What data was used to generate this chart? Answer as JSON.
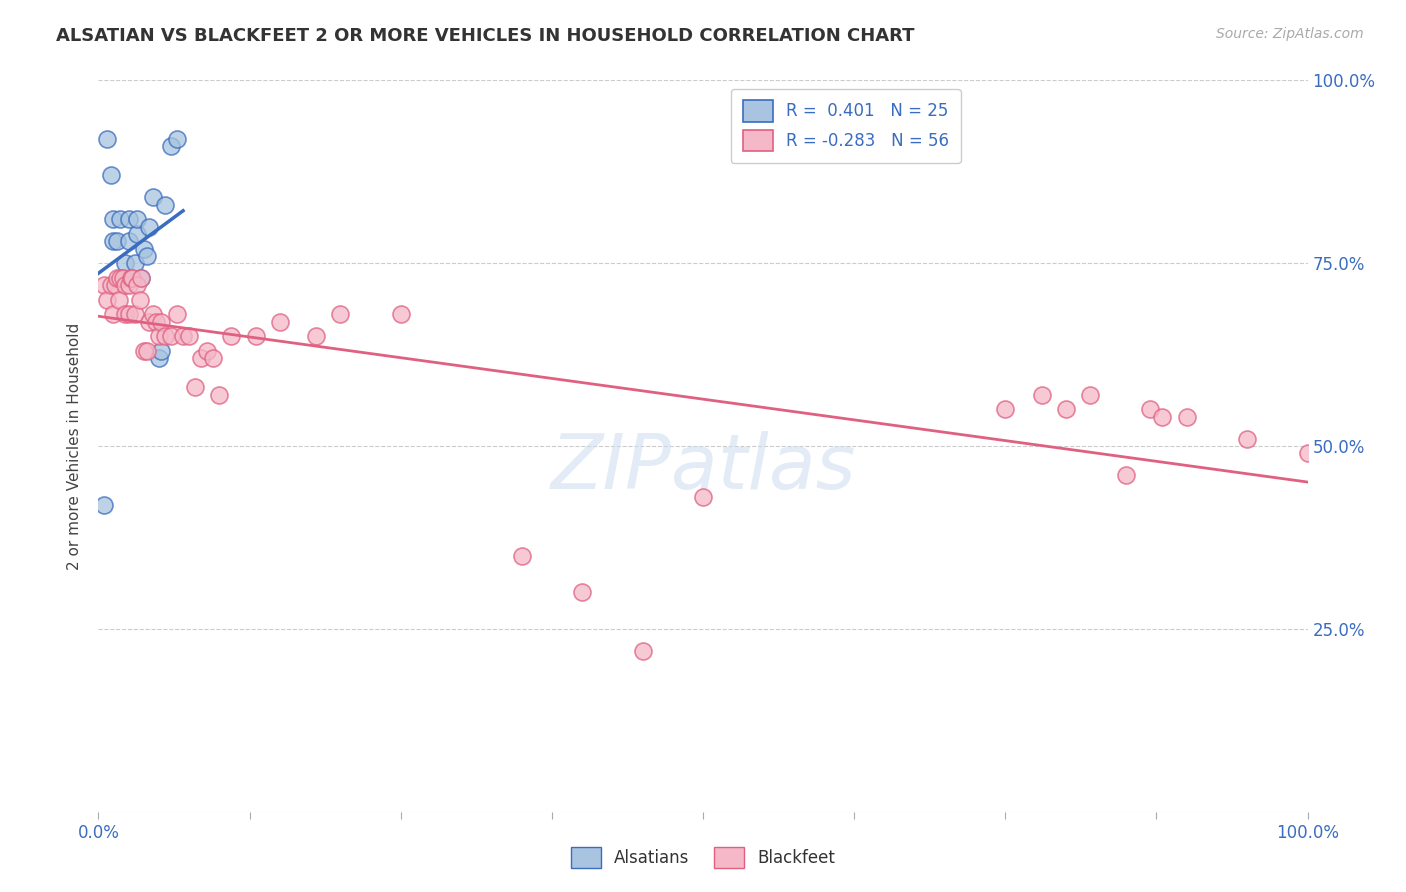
{
  "title": "ALSATIAN VS BLACKFEET 2 OR MORE VEHICLES IN HOUSEHOLD CORRELATION CHART",
  "source": "Source: ZipAtlas.com",
  "ylabel": "2 or more Vehicles in Household",
  "alsatian_color": "#a8c4e0",
  "blackfeet_color": "#f4b8c8",
  "alsatian_line_color": "#3a6dbf",
  "blackfeet_line_color": "#e06080",
  "alsatians_x": [
    0.005,
    0.007,
    0.01,
    0.012,
    0.012,
    0.015,
    0.018,
    0.02,
    0.022,
    0.025,
    0.025,
    0.028,
    0.03,
    0.032,
    0.032,
    0.035,
    0.038,
    0.04,
    0.042,
    0.045,
    0.05,
    0.052,
    0.055,
    0.06,
    0.065
  ],
  "alsatians_y": [
    0.42,
    0.92,
    0.87,
    0.78,
    0.81,
    0.78,
    0.81,
    0.73,
    0.75,
    0.78,
    0.81,
    0.73,
    0.75,
    0.79,
    0.81,
    0.73,
    0.77,
    0.76,
    0.8,
    0.84,
    0.62,
    0.63,
    0.83,
    0.91,
    0.92
  ],
  "blackfeet_x": [
    0.005,
    0.007,
    0.01,
    0.012,
    0.014,
    0.015,
    0.017,
    0.018,
    0.02,
    0.022,
    0.022,
    0.025,
    0.025,
    0.027,
    0.028,
    0.03,
    0.032,
    0.034,
    0.035,
    0.038,
    0.04,
    0.042,
    0.045,
    0.048,
    0.05,
    0.052,
    0.055,
    0.06,
    0.065,
    0.07,
    0.075,
    0.08,
    0.085,
    0.09,
    0.095,
    0.1,
    0.11,
    0.13,
    0.15,
    0.18,
    0.2,
    0.25,
    0.35,
    0.4,
    0.45,
    0.5,
    0.75,
    0.78,
    0.8,
    0.82,
    0.85,
    0.87,
    0.88,
    0.9,
    0.95,
    1.0
  ],
  "blackfeet_y": [
    0.72,
    0.7,
    0.72,
    0.68,
    0.72,
    0.73,
    0.7,
    0.73,
    0.73,
    0.68,
    0.72,
    0.68,
    0.72,
    0.73,
    0.73,
    0.68,
    0.72,
    0.7,
    0.73,
    0.63,
    0.63,
    0.67,
    0.68,
    0.67,
    0.65,
    0.67,
    0.65,
    0.65,
    0.68,
    0.65,
    0.65,
    0.58,
    0.62,
    0.63,
    0.62,
    0.57,
    0.65,
    0.65,
    0.67,
    0.65,
    0.68,
    0.68,
    0.35,
    0.3,
    0.22,
    0.43,
    0.55,
    0.57,
    0.55,
    0.57,
    0.46,
    0.55,
    0.54,
    0.54,
    0.51,
    0.49
  ],
  "xlim": [
    0.0,
    1.0
  ],
  "ylim": [
    0.0,
    1.0
  ]
}
